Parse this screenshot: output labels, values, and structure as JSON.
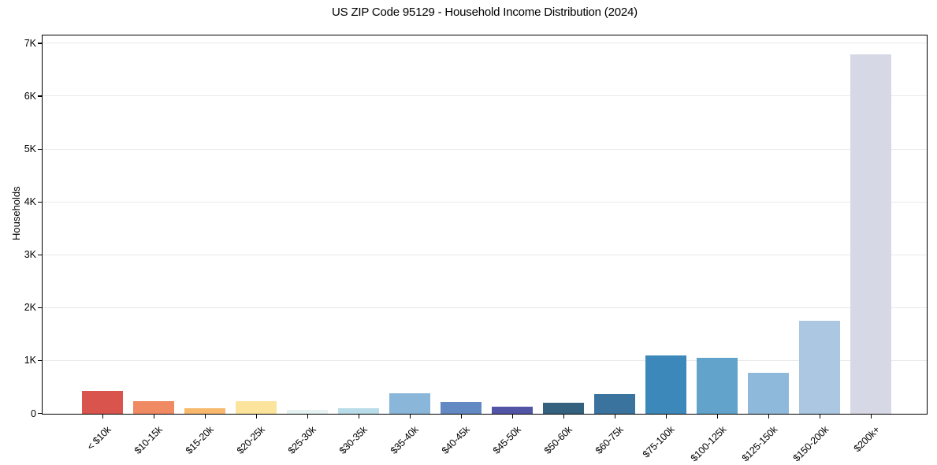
{
  "chart_data": {
    "type": "bar",
    "title": "US ZIP Code 95129 - Household Income Distribution (2024)",
    "xlabel": "",
    "ylabel": "Households",
    "categories": [
      "< $10k",
      "$10-15k",
      "$15-20k",
      "$20-25k",
      "$25-30k",
      "$30-35k",
      "$35-40k",
      "$40-45k",
      "$45-50k",
      "$50-60k",
      "$60-75k",
      "$75-100k",
      "$100-125k",
      "$125-150k",
      "$150-200k",
      "$200k+"
    ],
    "values": [
      430,
      235,
      110,
      245,
      70,
      105,
      395,
      220,
      140,
      210,
      370,
      1100,
      1060,
      770,
      1760,
      6790
    ],
    "bar_colors": [
      "#d8544d",
      "#f08a62",
      "#f8b96d",
      "#fce49c",
      "#e6f2f1",
      "#b9dce9",
      "#8ab6d9",
      "#6289c1",
      "#5254a5",
      "#33617e",
      "#3a739e",
      "#3d88ba",
      "#61a3ca",
      "#8fb9da",
      "#abc7e1",
      "#d6d8e6"
    ],
    "ytick_values": [
      0,
      1000,
      2000,
      3000,
      4000,
      5000,
      6000,
      7000
    ],
    "ytick_labels": [
      "0",
      "1K",
      "2K",
      "3K",
      "4K",
      "5K",
      "6K",
      "7K"
    ],
    "ylim": [
      0,
      7140
    ],
    "grid": "horizontal",
    "gridline_color": "#e9e9e9",
    "axis_color": "#000000",
    "background_color": "#ffffff",
    "legend": null
  }
}
